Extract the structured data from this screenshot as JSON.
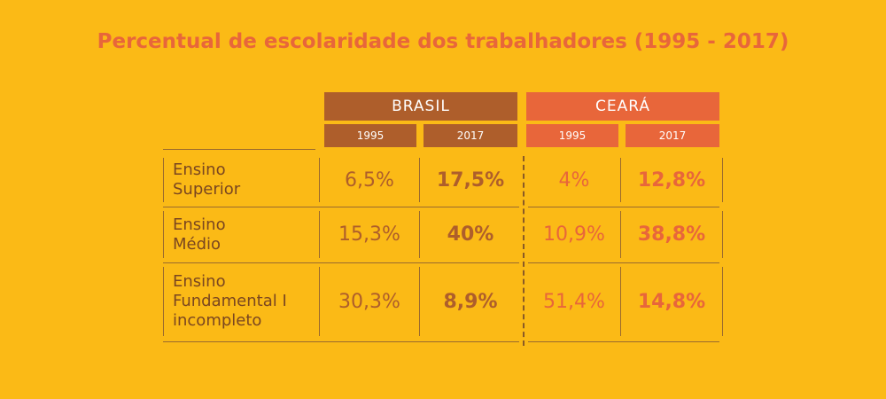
{
  "title": "Percentual de escolaridade dos trabalhadores (1995 - 2017)",
  "groups": [
    {
      "name": "BRASIL",
      "years": [
        "1995",
        "2017"
      ]
    },
    {
      "name": "CEARÁ",
      "years": [
        "1995",
        "2017"
      ]
    }
  ],
  "rows": [
    {
      "label_lines": [
        "Ensino",
        "Superior"
      ],
      "values": [
        "6,5%",
        "17,5%",
        "4%",
        "12,8%"
      ]
    },
    {
      "label_lines": [
        "Ensino",
        "Médio"
      ],
      "values": [
        "15,3%",
        "40%",
        "10,9%",
        "38,8%"
      ]
    },
    {
      "label_lines": [
        "Ensino",
        "Fundamental I",
        "incompleto"
      ],
      "values": [
        "30,3%",
        "8,9%",
        "51,4%",
        "14,8%"
      ]
    }
  ],
  "colors": {
    "background": "#FBBA16",
    "brasil": "#AE5E2B",
    "ceara": "#E8663A",
    "label": "#7A4620"
  },
  "chart_data": {
    "type": "table",
    "title": "Percentual de escolaridade dos trabalhadores (1995 - 2017)",
    "columns": [
      "BRASIL 1995",
      "BRASIL 2017",
      "CEARÁ 1995",
      "CEARÁ 2017"
    ],
    "rows": [
      "Ensino Superior",
      "Ensino Médio",
      "Ensino Fundamental I incompleto"
    ],
    "values": [
      [
        6.5,
        17.5,
        4,
        12.8
      ],
      [
        15.3,
        40,
        10.9,
        38.8
      ],
      [
        30.3,
        8.9,
        51.4,
        14.8
      ]
    ]
  }
}
